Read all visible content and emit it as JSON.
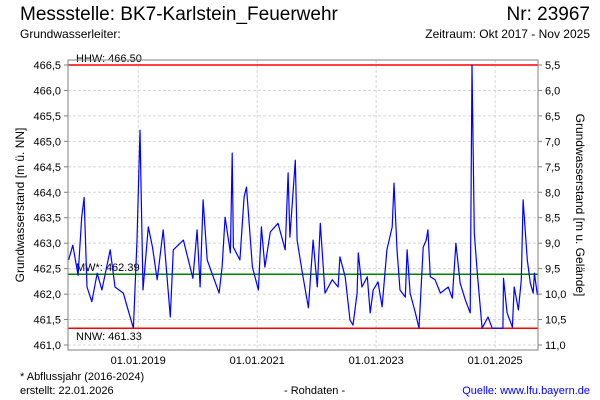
{
  "header": {
    "title": "Messstelle: BK7-Karlstein_Feuerwehr",
    "number": "Nr: 23967",
    "aquifer": "Grundwasserleiter:",
    "period": "Zeitraum: Okt 2017 - Nov 2025"
  },
  "footer": {
    "note": "* Abflussjahr (2016-2024)",
    "created": "erstellt:  22.01.2026",
    "raw": "- Rohdaten -",
    "source": "Quelle: www.lfu.bayern.de"
  },
  "chart_data": {
    "type": "line",
    "ylabel": "Grundwasserstand [m ü. NN]",
    "ylabel_right": "Grundwasserstand [m u. Gelände]",
    "ylim": [
      461.0,
      466.5
    ],
    "yticks": [
      "461,0",
      "461,5",
      "462,0",
      "462,5",
      "463,0",
      "463,5",
      "464,0",
      "464,5",
      "465,0",
      "465,5",
      "466,0",
      "466,5"
    ],
    "yticks_right": [
      "11,0",
      "10,5",
      "10,0",
      "9,5",
      "9,0",
      "8,5",
      "8,0",
      "7,5",
      "7,0",
      "6,5",
      "6,0",
      "5,5"
    ],
    "ground_level": 472.0,
    "xlim": [
      2017.82,
      2025.72
    ],
    "xticks": [
      {
        "x": 2019.0,
        "label": "01.01.2019"
      },
      {
        "x": 2021.0,
        "label": "01.01.2021"
      },
      {
        "x": 2023.0,
        "label": "01.01.2023"
      },
      {
        "x": 2025.0,
        "label": "01.01.2025"
      }
    ],
    "grid": true,
    "reference_lines": [
      {
        "name": "HHW",
        "label": "HHW: 466.50",
        "value": 466.5,
        "color": "#ff0000"
      },
      {
        "name": "MW",
        "label": "MW*: 462.39",
        "value": 462.39,
        "color": "#008000"
      },
      {
        "name": "NNW",
        "label": "NNW: 461.33",
        "value": 461.33,
        "color": "#ff0000"
      }
    ],
    "series": [
      {
        "name": "Grundwasserstand",
        "color": "#0000ff",
        "x": [
          2017.83,
          2017.9,
          2017.99,
          2018.05,
          2018.09,
          2018.14,
          2018.22,
          2018.31,
          2018.39,
          2018.53,
          2018.61,
          2018.75,
          2018.83,
          2018.92,
          2018.98,
          2019.03,
          2019.08,
          2019.17,
          2019.24,
          2019.32,
          2019.42,
          2019.54,
          2019.59,
          2019.76,
          2019.92,
          2019.99,
          2020.04,
          2020.09,
          2020.16,
          2020.36,
          2020.41,
          2020.46,
          2020.55,
          2020.58,
          2020.6,
          2020.71,
          2020.78,
          2020.82,
          2020.92,
          2021.02,
          2021.07,
          2021.13,
          2021.22,
          2021.35,
          2021.47,
          2021.52,
          2021.55,
          2021.64,
          2021.67,
          2021.76,
          2021.86,
          2021.94,
          2022.01,
          2022.06,
          2022.14,
          2022.26,
          2022.36,
          2022.39,
          2022.48,
          2022.56,
          2022.61,
          2022.68,
          2022.7,
          2022.76,
          2022.85,
          2022.9,
          2022.95,
          2023.03,
          2023.1,
          2023.18,
          2023.27,
          2023.3,
          2023.35,
          2023.4,
          2023.49,
          2023.52,
          2023.57,
          2023.66,
          2023.72,
          2023.79,
          2023.84,
          2023.87,
          2023.91,
          2023.99,
          2024.08,
          2024.21,
          2024.28,
          2024.34,
          2024.41,
          2024.5,
          2024.58,
          2024.61,
          2024.65,
          2024.7,
          2024.78,
          2024.88,
          2024.95,
          2025.13,
          2025.14,
          2025.2,
          2025.29,
          2025.32,
          2025.39,
          2025.44,
          2025.47,
          2025.54,
          2025.59,
          2025.64,
          2025.66,
          2025.71
        ],
        "y": [
          462.67,
          462.96,
          462.37,
          463.51,
          463.9,
          462.14,
          461.85,
          462.41,
          462.08,
          462.87,
          462.14,
          462.02,
          461.69,
          461.33,
          463.06,
          465.22,
          462.08,
          463.32,
          462.92,
          462.28,
          463.26,
          461.55,
          462.87,
          463.06,
          462.31,
          463.26,
          462.14,
          463.85,
          462.67,
          462.02,
          462.53,
          463.51,
          462.81,
          464.77,
          462.92,
          462.67,
          463.91,
          464.1,
          462.53,
          462.08,
          463.32,
          462.53,
          463.22,
          463.39,
          462.87,
          464.38,
          463.12,
          464.63,
          463.06,
          462.41,
          461.73,
          463.06,
          462.14,
          463.39,
          462.02,
          462.28,
          462.14,
          462.73,
          462.34,
          461.49,
          461.39,
          462.02,
          462.81,
          462.14,
          462.34,
          461.63,
          462.08,
          462.24,
          461.75,
          462.87,
          463.32,
          464.18,
          462.87,
          462.08,
          461.94,
          462.87,
          462.02,
          461.63,
          461.33,
          462.92,
          463.06,
          463.26,
          462.34,
          462.28,
          462.02,
          462.14,
          461.92,
          463.0,
          462.22,
          461.88,
          461.63,
          466.5,
          463.2,
          462.41,
          461.33,
          461.55,
          461.33,
          461.33,
          462.31,
          461.63,
          461.35,
          462.14,
          461.69,
          462.28,
          463.85,
          462.67,
          462.22,
          462.02,
          462.41,
          461.98
        ]
      }
    ]
  }
}
